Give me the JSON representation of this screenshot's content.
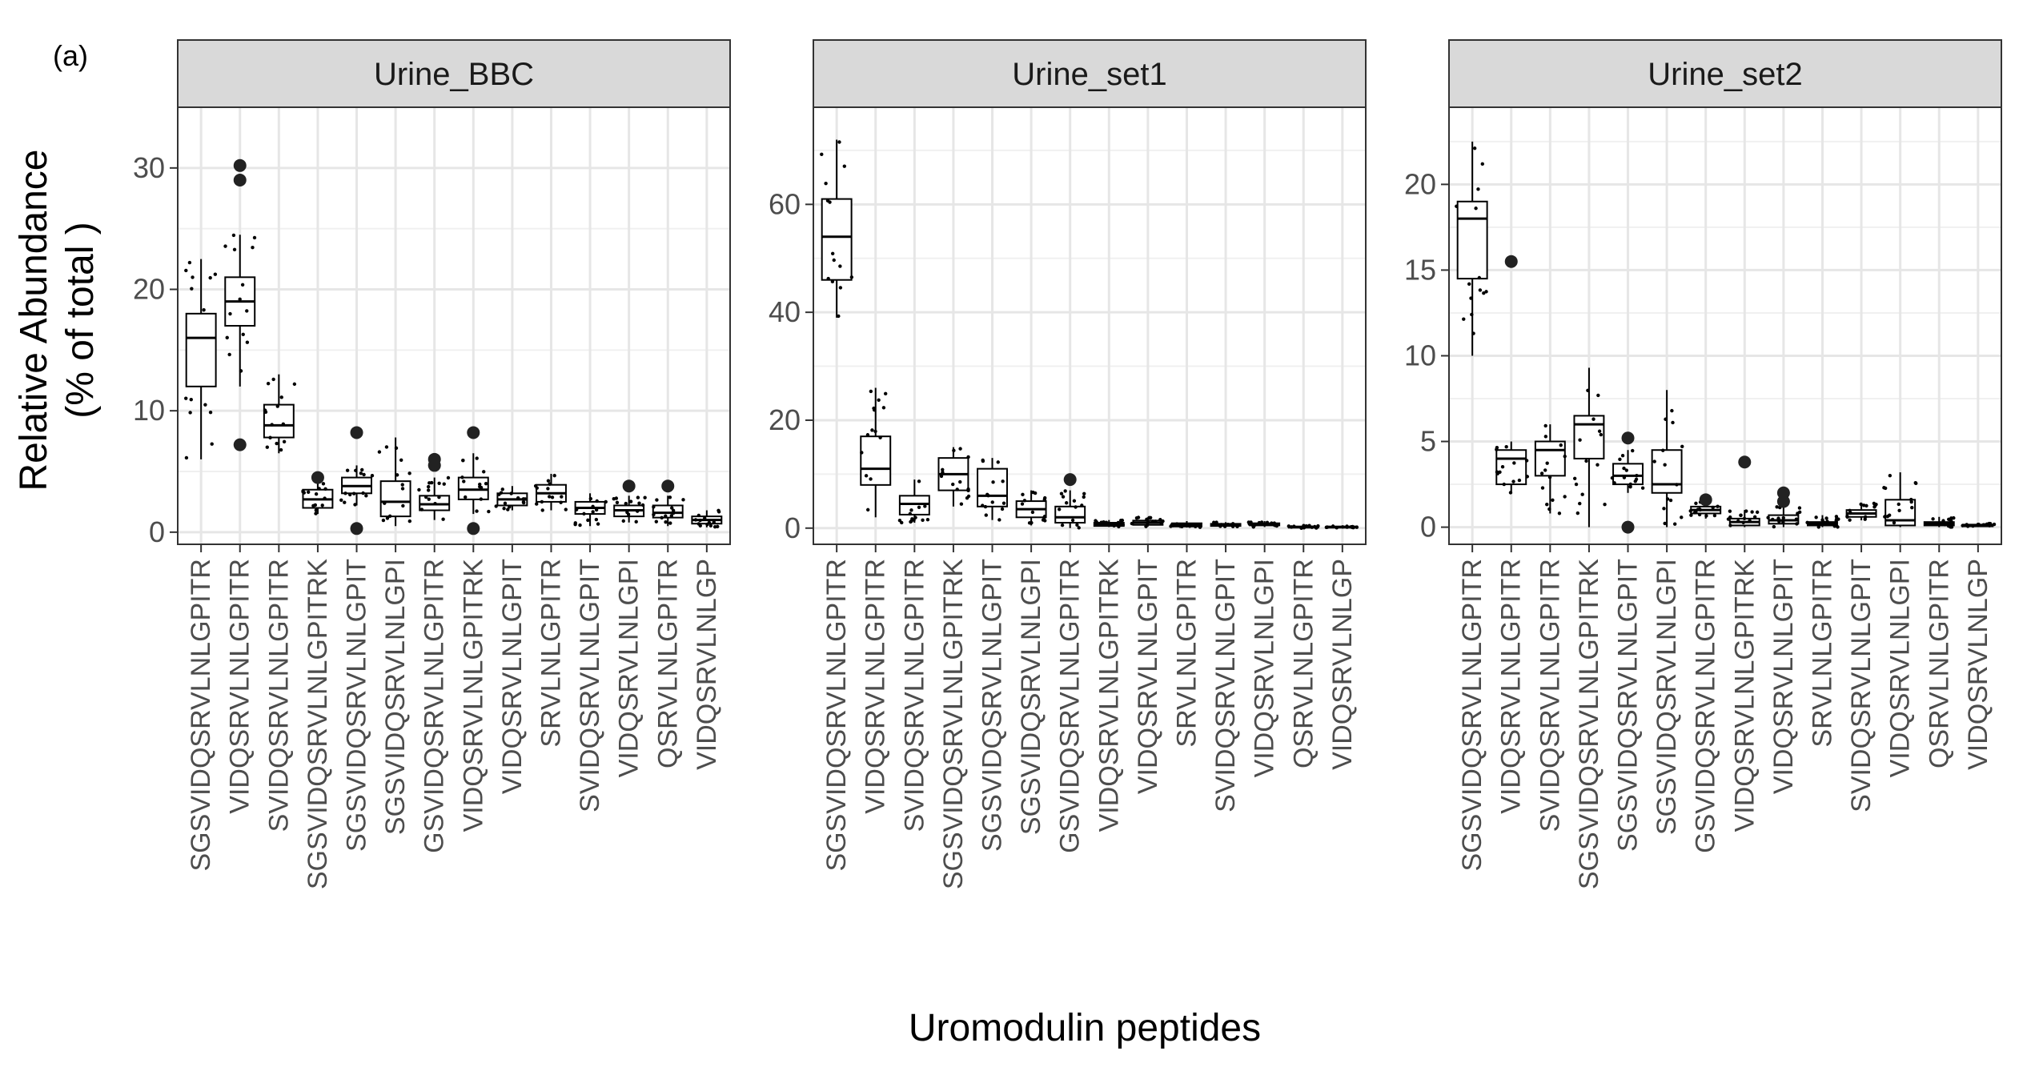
{
  "figure_label": "(a)",
  "chart_data": {
    "type": "box",
    "ylabel_line1": "Relative Abundance",
    "ylabel_line2": "(% of total )",
    "xlabel": "Uromodulin peptides",
    "categories": [
      "SGSVIDQSRVLNLGPITR",
      "VIDQSRVLNLGPITR",
      "SVIDQSRVLNLGPITR",
      "SGSVIDQSRVLNLGPITRK",
      "SGSVIDQSRVLNLGPIT",
      "SGSVIDQSRVLNLGPI",
      "GSVIDQSRVLNLGPITR",
      "VIDQSRVLNLGPITRK",
      "VIDQSRVLNLGPIT",
      "SRVLNLGPITR",
      "SVIDQSRVLNLGPIT",
      "VIDQSRVLNLGPI",
      "QSRVLNLGPITR",
      "VIDQSRVLNLGP"
    ],
    "panels": [
      {
        "title": "Urine_BBC",
        "ylim": [
          -1,
          35
        ],
        "yticks": [
          0,
          10,
          20,
          30
        ],
        "boxes": [
          {
            "q1": 12,
            "median": 16,
            "q3": 18,
            "lo": 6,
            "hi": 22.5,
            "outliers": []
          },
          {
            "q1": 17,
            "median": 19,
            "q3": 21,
            "lo": 12,
            "hi": 24.5,
            "outliers": [
              7.2,
              29,
              30.2
            ]
          },
          {
            "q1": 7.8,
            "median": 8.8,
            "q3": 10.5,
            "lo": 6.5,
            "hi": 13,
            "outliers": []
          },
          {
            "q1": 2,
            "median": 2.7,
            "q3": 3.5,
            "lo": 1.5,
            "hi": 4.2,
            "outliers": [
              4.5
            ]
          },
          {
            "q1": 3.2,
            "median": 3.8,
            "q3": 4.5,
            "lo": 2.2,
            "hi": 5.5,
            "outliers": [
              8.2,
              0.3
            ]
          },
          {
            "q1": 1.3,
            "median": 2.5,
            "q3": 4.2,
            "lo": 0.5,
            "hi": 7.8,
            "outliers": []
          },
          {
            "q1": 1.8,
            "median": 2.3,
            "q3": 3,
            "lo": 1,
            "hi": 4.5,
            "outliers": [
              5.5,
              6
            ]
          },
          {
            "q1": 2.7,
            "median": 3.5,
            "q3": 4.5,
            "lo": 1.5,
            "hi": 6.5,
            "outliers": [
              8.2,
              0.3
            ]
          },
          {
            "q1": 2.2,
            "median": 2.7,
            "q3": 3.2,
            "lo": 1.8,
            "hi": 3.8,
            "outliers": []
          },
          {
            "q1": 2.5,
            "median": 3.2,
            "q3": 3.9,
            "lo": 1.8,
            "hi": 4.8,
            "outliers": []
          },
          {
            "q1": 1.5,
            "median": 2,
            "q3": 2.5,
            "lo": 0.5,
            "hi": 3.2,
            "outliers": []
          },
          {
            "q1": 1.3,
            "median": 1.8,
            "q3": 2.2,
            "lo": 0.8,
            "hi": 3,
            "outliers": [
              3.8
            ]
          },
          {
            "q1": 1.2,
            "median": 1.6,
            "q3": 2.2,
            "lo": 0.5,
            "hi": 3,
            "outliers": [
              3.8
            ]
          },
          {
            "q1": 0.7,
            "median": 1,
            "q3": 1.3,
            "lo": 0.4,
            "hi": 1.8,
            "outliers": []
          }
        ]
      },
      {
        "title": "Urine_set1",
        "ylim": [
          -3,
          78
        ],
        "yticks": [
          0,
          20,
          40,
          60
        ],
        "boxes": [
          {
            "q1": 46,
            "median": 54,
            "q3": 61,
            "lo": 39,
            "hi": 72,
            "outliers": []
          },
          {
            "q1": 8,
            "median": 11,
            "q3": 17,
            "lo": 2,
            "hi": 26,
            "outliers": []
          },
          {
            "q1": 2.5,
            "median": 4.5,
            "q3": 6,
            "lo": 1,
            "hi": 9,
            "outliers": []
          },
          {
            "q1": 7,
            "median": 10,
            "q3": 13,
            "lo": 4,
            "hi": 15,
            "outliers": []
          },
          {
            "q1": 4,
            "median": 6,
            "q3": 11,
            "lo": 1.5,
            "hi": 13,
            "outliers": []
          },
          {
            "q1": 2,
            "median": 3.5,
            "q3": 5,
            "lo": 0.5,
            "hi": 7,
            "outliers": []
          },
          {
            "q1": 1,
            "median": 2,
            "q3": 4,
            "lo": 0,
            "hi": 7,
            "outliers": [
              9
            ]
          },
          {
            "q1": 0.4,
            "median": 0.7,
            "q3": 1,
            "lo": 0.2,
            "hi": 1.5,
            "outliers": []
          },
          {
            "q1": 0.6,
            "median": 1,
            "q3": 1.4,
            "lo": 0.3,
            "hi": 2,
            "outliers": []
          },
          {
            "q1": 0.3,
            "median": 0.6,
            "q3": 0.9,
            "lo": 0.1,
            "hi": 1.3,
            "outliers": []
          },
          {
            "q1": 0.4,
            "median": 0.6,
            "q3": 0.8,
            "lo": 0.2,
            "hi": 1.1,
            "outliers": []
          },
          {
            "q1": 0.5,
            "median": 0.7,
            "q3": 0.9,
            "lo": 0.2,
            "hi": 1.3,
            "outliers": []
          },
          {
            "q1": 0.1,
            "median": 0.2,
            "q3": 0.3,
            "lo": 0,
            "hi": 0.5,
            "outliers": []
          },
          {
            "q1": 0.1,
            "median": 0.2,
            "q3": 0.3,
            "lo": 0,
            "hi": 0.4,
            "outliers": []
          }
        ]
      },
      {
        "title": "Urine_set2",
        "ylim": [
          -1,
          24.5
        ],
        "yticks": [
          0,
          5,
          10,
          15,
          20
        ],
        "boxes": [
          {
            "q1": 14.5,
            "median": 18,
            "q3": 19,
            "lo": 10,
            "hi": 22.5,
            "outliers": []
          },
          {
            "q1": 2.5,
            "median": 4,
            "q3": 4.5,
            "lo": 2,
            "hi": 5,
            "outliers": [
              15.5
            ]
          },
          {
            "q1": 3,
            "median": 4.5,
            "q3": 5,
            "lo": 0.8,
            "hi": 6,
            "outliers": []
          },
          {
            "q1": 4,
            "median": 6,
            "q3": 6.5,
            "lo": 0,
            "hi": 9.3,
            "outliers": []
          },
          {
            "q1": 2.5,
            "median": 3,
            "q3": 3.7,
            "lo": 2,
            "hi": 4.5,
            "outliers": [
              5.2,
              0
            ]
          },
          {
            "q1": 2,
            "median": 2.5,
            "q3": 4.5,
            "lo": 0,
            "hi": 8,
            "outliers": []
          },
          {
            "q1": 0.8,
            "median": 1,
            "q3": 1.2,
            "lo": 0.5,
            "hi": 1.5,
            "outliers": [
              1.6
            ]
          },
          {
            "q1": 0.1,
            "median": 0.3,
            "q3": 0.5,
            "lo": 0,
            "hi": 1,
            "outliers": [
              3.8
            ]
          },
          {
            "q1": 0.2,
            "median": 0.4,
            "q3": 0.7,
            "lo": 0,
            "hi": 1.2,
            "outliers": [
              1.5,
              2
            ]
          },
          {
            "q1": 0.1,
            "median": 0.2,
            "q3": 0.3,
            "lo": 0,
            "hi": 0.7,
            "outliers": []
          },
          {
            "q1": 0.6,
            "median": 0.8,
            "q3": 1,
            "lo": 0.4,
            "hi": 1.4,
            "outliers": []
          },
          {
            "q1": 0.1,
            "median": 0.4,
            "q3": 1.6,
            "lo": 0,
            "hi": 3.2,
            "outliers": []
          },
          {
            "q1": 0.1,
            "median": 0.2,
            "q3": 0.3,
            "lo": 0,
            "hi": 0.6,
            "outliers": []
          },
          {
            "q1": 0.05,
            "median": 0.1,
            "q3": 0.15,
            "lo": 0,
            "hi": 0.25,
            "outliers": []
          }
        ]
      }
    ]
  }
}
